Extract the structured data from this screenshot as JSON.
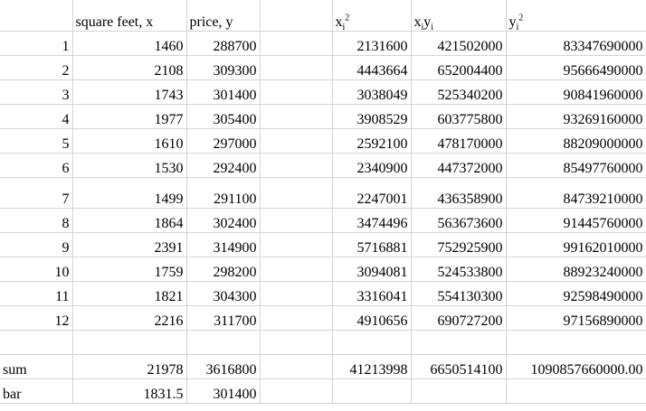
{
  "headers": {
    "x": "square feet, x",
    "y": "price, y",
    "xx_base": "x",
    "xx_sub": "i",
    "xx_sup": "2",
    "xy_base1": "x",
    "xy_sub1": "i",
    "xy_base2": "y",
    "xy_sub2": "i",
    "yy_base": "y",
    "yy_sub": "i",
    "yy_sup": "2"
  },
  "rows": [
    {
      "n": "1",
      "x": "1460",
      "y": "288700",
      "xx": "2131600",
      "xy": "421502000",
      "yy": "83347690000"
    },
    {
      "n": "2",
      "x": "2108",
      "y": "309300",
      "xx": "4443664",
      "xy": "652004400",
      "yy": "95666490000"
    },
    {
      "n": "3",
      "x": "1743",
      "y": "301400",
      "xx": "3038049",
      "xy": "525340200",
      "yy": "90841960000"
    },
    {
      "n": "4",
      "x": "1977",
      "y": "305400",
      "xx": "3908529",
      "xy": "603775800",
      "yy": "93269160000"
    },
    {
      "n": "5",
      "x": "1610",
      "y": "297000",
      "xx": "2592100",
      "xy": "478170000",
      "yy": "88209000000"
    },
    {
      "n": "6",
      "x": "1530",
      "y": "292400",
      "xx": "2340900",
      "xy": "447372000",
      "yy": "85497760000"
    },
    {
      "n": "7",
      "x": "1499",
      "y": "291100",
      "xx": "2247001",
      "xy": "436358900",
      "yy": "84739210000"
    },
    {
      "n": "8",
      "x": "1864",
      "y": "302400",
      "xx": "3474496",
      "xy": "563673600",
      "yy": "91445760000"
    },
    {
      "n": "9",
      "x": "2391",
      "y": "314900",
      "xx": "5716881",
      "xy": "752925900",
      "yy": "99162010000"
    },
    {
      "n": "10",
      "x": "1759",
      "y": "298200",
      "xx": "3094081",
      "xy": "524533800",
      "yy": "88923240000"
    },
    {
      "n": "11",
      "x": "1821",
      "y": "304300",
      "xx": "3316041",
      "xy": "554130300",
      "yy": "92598490000"
    },
    {
      "n": "12",
      "x": "2216",
      "y": "311700",
      "xx": "4910656",
      "xy": "690727200",
      "yy": "97156890000"
    }
  ],
  "sum": {
    "label": "sum",
    "x": "21978",
    "y": "3616800",
    "xx": "41213998",
    "xy": "6650514100",
    "yy": "1090857660000.00"
  },
  "bar": {
    "label": "bar",
    "x": "1831.5",
    "y": "301400"
  }
}
